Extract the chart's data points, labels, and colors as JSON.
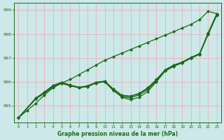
{
  "xlabel": "Graphe pression niveau de la mer (hPa)",
  "background_color": "#cce8e8",
  "grid_color": "#e8b8c0",
  "line_color": "#1a6b1a",
  "xlim": [
    -0.5,
    23.5
  ],
  "ylim": [
    994.3,
    999.3
  ],
  "yticks": [
    995,
    996,
    997,
    998,
    999
  ],
  "xticks": [
    0,
    1,
    2,
    3,
    4,
    5,
    6,
    7,
    8,
    9,
    10,
    11,
    12,
    13,
    14,
    15,
    16,
    17,
    18,
    19,
    20,
    21,
    22,
    23
  ],
  "line_upper": {
    "x": [
      0,
      1,
      2,
      3,
      4,
      5,
      6,
      7,
      8,
      9,
      10,
      11,
      12,
      13,
      14,
      15,
      16,
      17,
      18,
      19,
      20,
      21,
      22,
      23
    ],
    "y": [
      994.5,
      994.8,
      995.1,
      995.45,
      995.75,
      995.95,
      996.1,
      996.3,
      996.5,
      996.7,
      996.9,
      997.05,
      997.2,
      997.35,
      997.5,
      997.65,
      997.8,
      997.95,
      998.1,
      998.25,
      998.4,
      998.6,
      998.95,
      998.85
    ]
  },
  "line_dip": {
    "x": [
      0,
      2,
      3,
      4,
      5,
      6,
      7,
      8,
      9,
      10,
      11,
      12,
      13,
      14,
      15,
      16,
      17,
      18,
      19,
      20,
      21,
      22,
      23
    ],
    "y": [
      994.5,
      995.3,
      995.55,
      995.8,
      995.95,
      995.85,
      995.75,
      995.8,
      995.95,
      996.0,
      995.65,
      995.35,
      995.25,
      995.35,
      995.6,
      996.0,
      996.45,
      996.65,
      996.8,
      997.0,
      997.15,
      998.05,
      998.85
    ]
  },
  "line_mid1": {
    "x": [
      0,
      2,
      3,
      4,
      5,
      6,
      7,
      8,
      9,
      10,
      11,
      12,
      13,
      14,
      15,
      16,
      17,
      18,
      19,
      20,
      21,
      22,
      23
    ],
    "y": [
      994.5,
      995.3,
      995.55,
      995.82,
      995.97,
      995.85,
      995.77,
      995.82,
      995.97,
      996.02,
      995.68,
      995.42,
      995.38,
      995.5,
      995.73,
      996.07,
      996.48,
      996.68,
      996.82,
      997.0,
      997.17,
      998.0,
      998.8
    ]
  },
  "line_mid2": {
    "x": [
      0,
      2,
      3,
      4,
      5,
      6,
      7,
      8,
      9,
      10,
      11,
      12,
      13,
      14,
      15,
      16,
      17,
      18,
      19,
      20,
      21,
      22,
      23
    ],
    "y": [
      994.5,
      995.32,
      995.57,
      995.85,
      995.98,
      995.87,
      995.77,
      995.83,
      995.98,
      996.03,
      995.7,
      995.44,
      995.4,
      995.52,
      995.75,
      996.1,
      996.5,
      996.7,
      996.83,
      997.02,
      997.18,
      998.02,
      998.82
    ]
  },
  "line_cluster_low": {
    "x": [
      0,
      2,
      3,
      4,
      5,
      6,
      7,
      8,
      9,
      10,
      11,
      12,
      13,
      14,
      15,
      16,
      17,
      18,
      19,
      20,
      21,
      22,
      23
    ],
    "y": [
      994.5,
      995.28,
      995.52,
      995.78,
      995.93,
      995.83,
      995.75,
      995.8,
      995.95,
      996.0,
      995.63,
      995.37,
      995.33,
      995.45,
      995.68,
      996.03,
      996.45,
      996.65,
      996.8,
      996.98,
      997.15,
      997.98,
      998.78
    ]
  }
}
